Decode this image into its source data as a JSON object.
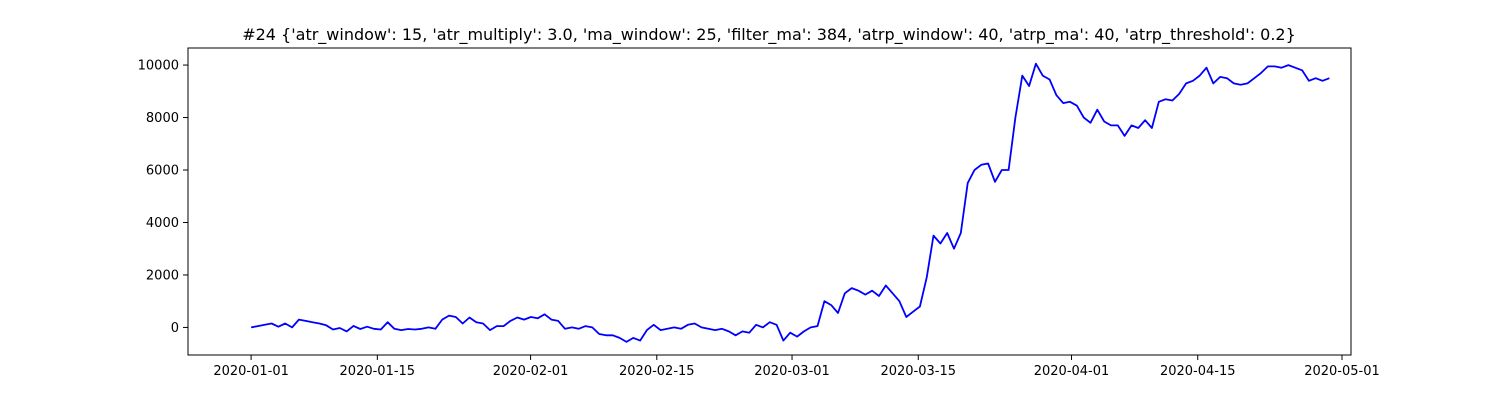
{
  "chart_data": {
    "type": "line",
    "title": "#24 {'atr_window': 15, 'atr_multiply': 3.0, 'ma_window': 25, 'filter_ma': 384, 'atrp_window': 40, 'atrp_ma': 40, 'atrp_threshold': 0.2}",
    "xlabel": "",
    "ylabel": "",
    "x_axis_type": "date",
    "xlim": [
      "2019-12-25",
      "2020-05-02"
    ],
    "ylim": [
      -1050,
      10650
    ],
    "x_ticks": [
      "2020-01-01",
      "2020-01-15",
      "2020-02-01",
      "2020-02-15",
      "2020-03-01",
      "2020-03-15",
      "2020-04-01",
      "2020-04-15",
      "2020-05-01"
    ],
    "y_ticks": [
      0,
      2000,
      4000,
      6000,
      8000,
      10000
    ],
    "grid": false,
    "legend": "none",
    "series": [
      {
        "color": "#0000ff",
        "points": [
          [
            "2020-01-01",
            0
          ],
          [
            "2020-01-01",
            50
          ],
          [
            "2020-01-02",
            100
          ],
          [
            "2020-01-03",
            150
          ],
          [
            "2020-01-03",
            30
          ],
          [
            "2020-01-04",
            150
          ],
          [
            "2020-01-04",
            0
          ],
          [
            "2020-01-05",
            300
          ],
          [
            "2020-01-05",
            250
          ],
          [
            "2020-01-07",
            200
          ],
          [
            "2020-01-08",
            150
          ],
          [
            "2020-01-09",
            80
          ],
          [
            "2020-01-10",
            -80
          ],
          [
            "2020-01-11",
            -20
          ],
          [
            "2020-01-11",
            -150
          ],
          [
            "2020-01-12",
            60
          ],
          [
            "2020-01-12",
            -60
          ],
          [
            "2020-01-13",
            30
          ],
          [
            "2020-01-14",
            -50
          ],
          [
            "2020-01-15",
            -80
          ],
          [
            "2020-01-18",
            200
          ],
          [
            "2020-01-19",
            -50
          ],
          [
            "2020-01-21",
            -100
          ],
          [
            "2020-01-22",
            -60
          ],
          [
            "2020-01-22",
            -80
          ],
          [
            "2020-01-28",
            -50
          ],
          [
            "2020-01-29",
            0
          ],
          [
            "2020-01-30",
            -50
          ],
          [
            "2020-02-02",
            300
          ],
          [
            "2020-02-03",
            450
          ],
          [
            "2020-02-04",
            400
          ],
          [
            "2020-02-05",
            150
          ],
          [
            "2020-02-08",
            380
          ],
          [
            "2020-02-09",
            200
          ],
          [
            "2020-02-10",
            150
          ],
          [
            "2020-02-11",
            -100
          ],
          [
            "2020-02-11",
            50
          ],
          [
            "2020-02-13",
            50
          ],
          [
            "2020-02-13",
            250
          ],
          [
            "2020-02-15",
            380
          ],
          [
            "2020-02-15",
            300
          ],
          [
            "2020-02-18",
            400
          ],
          [
            "2020-02-18",
            350
          ],
          [
            "2020-02-19",
            500
          ],
          [
            "2020-02-20",
            300
          ],
          [
            "2020-02-21",
            250
          ],
          [
            "2020-02-21",
            -50
          ],
          [
            "2020-02-22",
            0
          ],
          [
            "2020-02-23",
            -50
          ],
          [
            "2020-02-23",
            50
          ],
          [
            "2020-02-24",
            0
          ],
          [
            "2020-02-24",
            -250
          ],
          [
            "2020-02-25",
            -300
          ],
          [
            "2020-02-29",
            -300
          ],
          [
            "2020-03-01",
            -400
          ],
          [
            "2020-03-01",
            -550
          ],
          [
            "2020-03-02",
            -400
          ],
          [
            "2020-03-03",
            -500
          ],
          [
            "2020-03-04",
            -100
          ],
          [
            "2020-03-05",
            100
          ],
          [
            "2020-03-06",
            -100
          ],
          [
            "2020-03-07",
            -50
          ],
          [
            "2020-03-08",
            0
          ],
          [
            "2020-03-08",
            -50
          ],
          [
            "2020-03-13",
            100
          ],
          [
            "2020-03-14",
            150
          ],
          [
            "2020-03-14",
            0
          ],
          [
            "2020-03-15",
            -50
          ],
          [
            "2020-03-15",
            -100
          ],
          [
            "2020-03-16",
            -50
          ],
          [
            "2020-03-17",
            -150
          ],
          [
            "2020-03-18",
            -300
          ],
          [
            "2020-03-20",
            -150
          ],
          [
            "2020-03-21",
            -200
          ],
          [
            "2020-03-24",
            100
          ],
          [
            "2020-03-24",
            0
          ],
          [
            "2020-03-25",
            200
          ],
          [
            "2020-03-26",
            100
          ],
          [
            "2020-03-27",
            -500
          ],
          [
            "2020-03-27",
            -200
          ],
          [
            "2020-03-28",
            -350
          ],
          [
            "2020-03-29",
            -150
          ],
          [
            "2020-03-30",
            0
          ],
          [
            "2020-03-31",
            50
          ],
          [
            "2020-03-01",
            1000
          ],
          [
            "2020-03-02",
            850
          ],
          [
            "2020-03-05",
            550
          ],
          [
            "2020-03-05",
            1300
          ],
          [
            "2020-03-06",
            1500
          ],
          [
            "2020-03-07",
            1400
          ],
          [
            "2020-03-08",
            1250
          ],
          [
            "2020-03-09",
            1400
          ],
          [
            "2020-03-09",
            1200
          ],
          [
            "2020-03-10",
            1600
          ],
          [
            "2020-03-12",
            1300
          ],
          [
            "2020-03-13",
            1000
          ],
          [
            "2020-03-14",
            400
          ],
          [
            "2020-03-15",
            600
          ],
          [
            "2020-03-16",
            800
          ],
          [
            "2020-03-16",
            1900
          ],
          [
            "2020-03-18",
            3500
          ],
          [
            "2020-03-18",
            3200
          ],
          [
            "2020-03-18",
            3600
          ],
          [
            "2020-03-19",
            3000
          ],
          [
            "2020-03-19",
            3600
          ],
          [
            "2020-03-23",
            5500
          ],
          [
            "2020-03-24",
            6000
          ],
          [
            "2020-03-25",
            6200
          ],
          [
            "2020-03-26",
            6250
          ],
          [
            "2020-03-26",
            5550
          ],
          [
            "2020-03-27",
            6000
          ],
          [
            "2020-03-27",
            6000
          ],
          [
            "2020-03-31",
            8000
          ],
          [
            "2020-04-01",
            9600
          ],
          [
            "2020-04-02",
            9200
          ],
          [
            "2020-04-02",
            10050
          ],
          [
            "2020-04-03",
            9600
          ],
          [
            "2020-04-04",
            9450
          ],
          [
            "2020-04-05",
            8850
          ],
          [
            "2020-04-06",
            8550
          ],
          [
            "2020-04-06",
            8600
          ],
          [
            "2020-04-09",
            8450
          ],
          [
            "2020-04-10",
            8000
          ],
          [
            "2020-04-11",
            7800
          ],
          [
            "2020-04-11",
            8300
          ],
          [
            "2020-04-12",
            7850
          ],
          [
            "2020-04-13",
            7700
          ],
          [
            "2020-04-14",
            7700
          ],
          [
            "2020-04-16",
            7300
          ],
          [
            "2020-04-16",
            7700
          ],
          [
            "2020-04-17",
            7600
          ],
          [
            "2020-04-17",
            7900
          ],
          [
            "2020-04-18",
            7600
          ],
          [
            "2020-04-19",
            8600
          ],
          [
            "2020-04-20",
            8700
          ],
          [
            "2020-04-24",
            8650
          ],
          [
            "2020-04-25",
            8900
          ],
          [
            "2020-04-25",
            9300
          ],
          [
            "2020-04-26",
            9400
          ],
          [
            "2020-04-27",
            9600
          ],
          [
            "2020-04-27",
            9900
          ],
          [
            "2020-04-28",
            9300
          ],
          [
            "2020-04-28",
            9550
          ],
          [
            "2020-04-29",
            9500
          ],
          [
            "2020-04-30",
            9300
          ],
          [
            "2020-04-30",
            9250
          ],
          [
            "2020-05-01",
            9300
          ],
          [
            "2020-05-01",
            9500
          ],
          [
            "2020-05-02",
            9700
          ],
          [
            "2020-05-02",
            9950
          ],
          [
            "2020-05-03",
            9950
          ],
          [
            "2020-05-04",
            9900
          ],
          [
            "2020-05-04",
            10000
          ],
          [
            "2020-05-05",
            9900
          ],
          [
            "2020-05-06",
            9800
          ],
          [
            "2020-05-06",
            9400
          ],
          [
            "2020-05-07",
            9500
          ],
          [
            "2020-05-07",
            9400
          ],
          [
            "2020-05-08",
            9500
          ]
        ]
      }
    ]
  }
}
